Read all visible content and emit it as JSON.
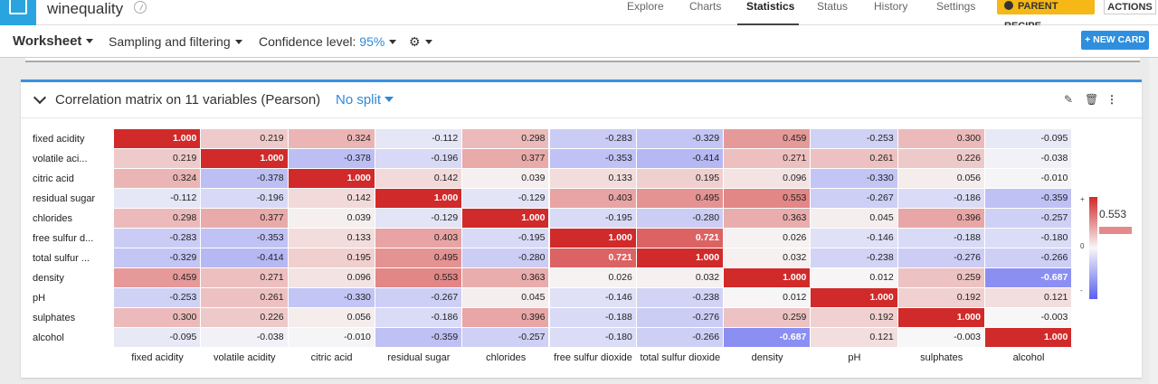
{
  "project": {
    "name": "winequality"
  },
  "nav": {
    "tabs": [
      "Explore",
      "Charts",
      "Statistics",
      "Status",
      "History",
      "Settings"
    ],
    "active": "Statistics",
    "parent_recipe": "PARENT RECIPE",
    "actions": "ACTIONS"
  },
  "toolbar": {
    "worksheet": "Worksheet",
    "sampling": "Sampling and filtering",
    "confidence_label": "Confidence level: ",
    "confidence_value": "95%",
    "new_card": "+ NEW CARD"
  },
  "card": {
    "title": "Correlation matrix on 11 variables (Pearson)",
    "split": "No split"
  },
  "colors": {
    "accent": "#3c8fe0",
    "positive": "#d12a2a",
    "negative": "#5a60f0",
    "badge": "#f6b816"
  },
  "chart_data": {
    "type": "heatmap",
    "row_labels": [
      "fixed acidity",
      "volatile aci...",
      "citric acid",
      "residual sugar",
      "chlorides",
      "free sulfur d...",
      "total sulfur ...",
      "density",
      "pH",
      "sulphates",
      "alcohol"
    ],
    "col_labels": [
      "fixed acidity",
      "volatile acidity",
      "citric acid",
      "residual sugar",
      "chlorides",
      "free sulfur dioxide",
      "total sulfur dioxide",
      "density",
      "pH",
      "sulphates",
      "alcohol"
    ],
    "values": [
      [
        1.0,
        0.219,
        0.324,
        -0.112,
        0.298,
        -0.283,
        -0.329,
        0.459,
        -0.253,
        0.3,
        -0.095
      ],
      [
        0.219,
        1.0,
        -0.378,
        -0.196,
        0.377,
        -0.353,
        -0.414,
        0.271,
        0.261,
        0.226,
        -0.038
      ],
      [
        0.324,
        -0.378,
        1.0,
        0.142,
        0.039,
        0.133,
        0.195,
        0.096,
        -0.33,
        0.056,
        -0.01
      ],
      [
        -0.112,
        -0.196,
        0.142,
        1.0,
        -0.129,
        0.403,
        0.495,
        0.553,
        -0.267,
        -0.186,
        -0.359
      ],
      [
        0.298,
        0.377,
        0.039,
        -0.129,
        1.0,
        -0.195,
        -0.28,
        0.363,
        0.045,
        0.396,
        -0.257
      ],
      [
        -0.283,
        -0.353,
        0.133,
        0.403,
        -0.195,
        1.0,
        0.721,
        0.026,
        -0.146,
        -0.188,
        -0.18
      ],
      [
        -0.329,
        -0.414,
        0.195,
        0.495,
        -0.28,
        0.721,
        1.0,
        0.032,
        -0.238,
        -0.276,
        -0.266
      ],
      [
        0.459,
        0.271,
        0.096,
        0.553,
        0.363,
        0.026,
        0.032,
        1.0,
        0.012,
        0.259,
        -0.687
      ],
      [
        -0.253,
        0.261,
        -0.33,
        -0.267,
        0.045,
        -0.146,
        -0.238,
        0.012,
        1.0,
        0.192,
        0.121
      ],
      [
        0.3,
        0.226,
        0.056,
        -0.186,
        0.396,
        -0.188,
        -0.276,
        0.259,
        0.192,
        1.0,
        -0.003
      ],
      [
        -0.095,
        -0.038,
        -0.01,
        -0.359,
        -0.257,
        -0.18,
        -0.266,
        -0.687,
        0.121,
        -0.003,
        1.0
      ]
    ],
    "range": [
      -1,
      1
    ],
    "legend": {
      "plus": "+",
      "zero": "0",
      "minus": "-",
      "hover_value": "0.553"
    }
  }
}
